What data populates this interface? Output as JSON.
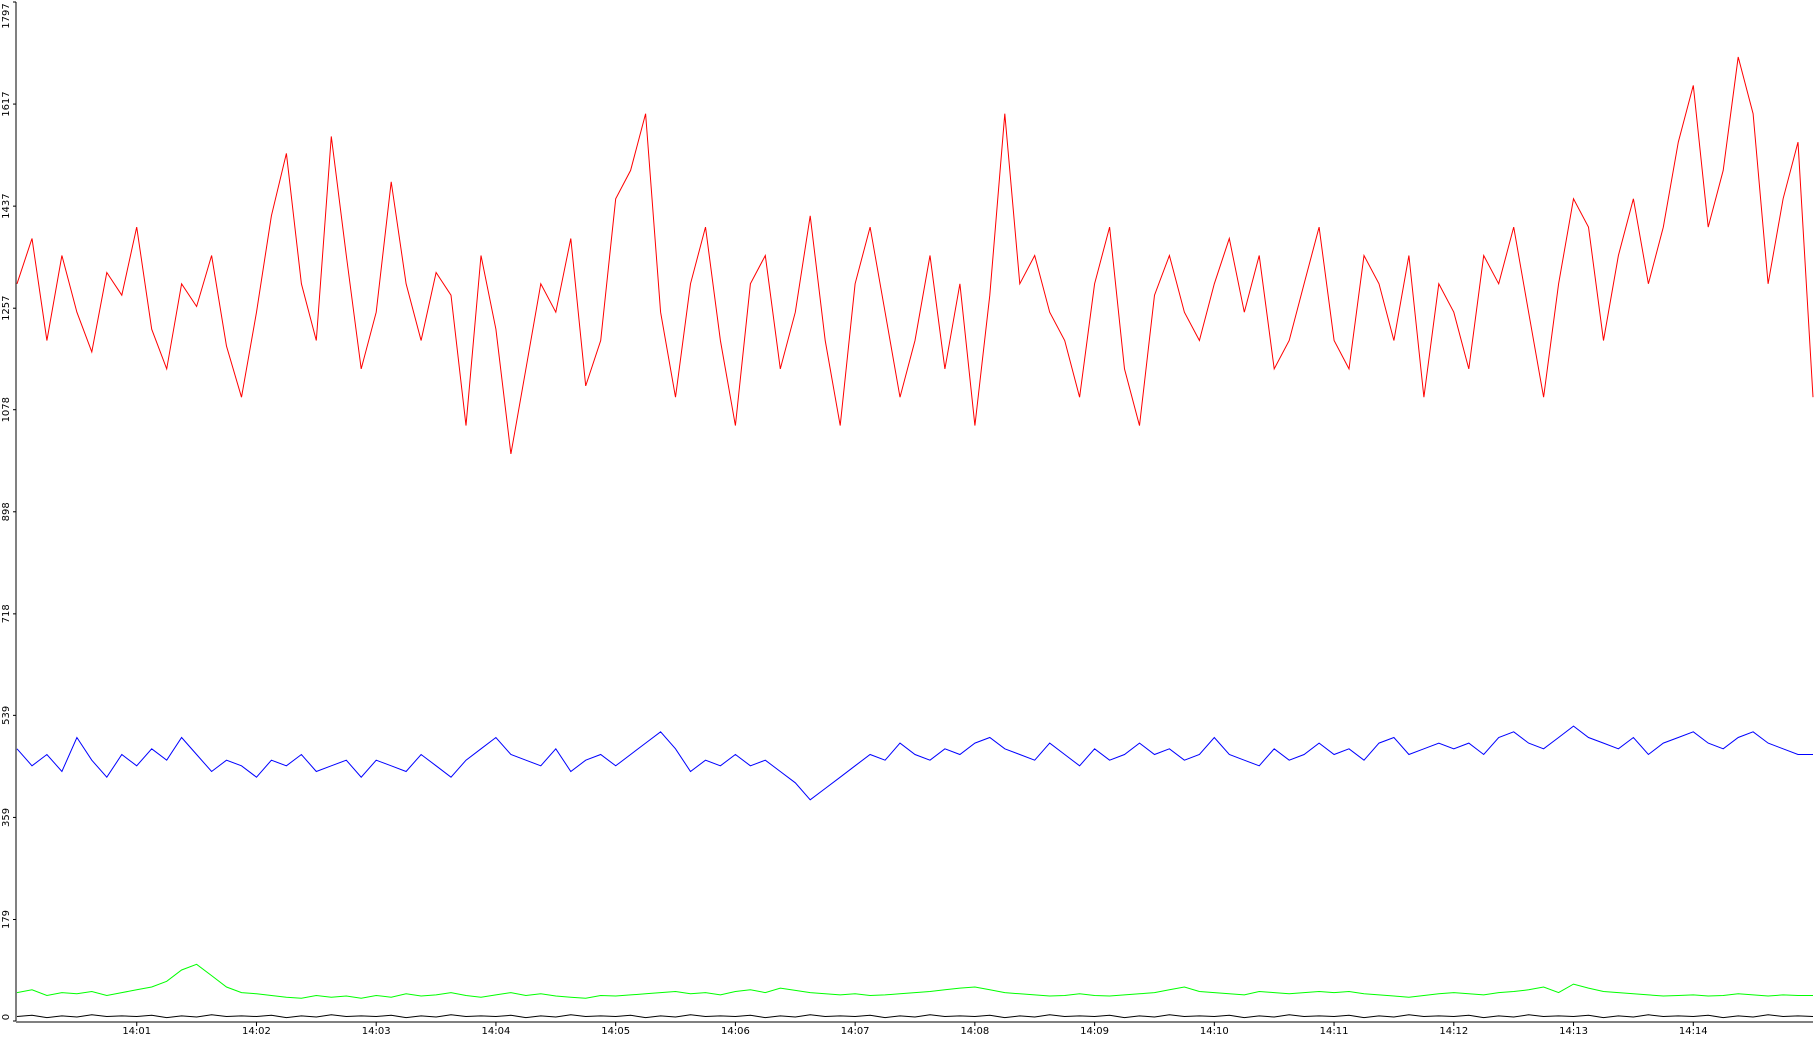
{
  "chart_data": {
    "type": "line",
    "categories": [
      null,
      null,
      null,
      null,
      null,
      null,
      null,
      null,
      "14:01",
      null,
      null,
      null,
      null,
      null,
      null,
      null,
      "14:02",
      null,
      null,
      null,
      null,
      null,
      null,
      null,
      "14:03",
      null,
      null,
      null,
      null,
      null,
      null,
      null,
      "14:04",
      null,
      null,
      null,
      null,
      null,
      null,
      null,
      "14:05",
      null,
      null,
      null,
      null,
      null,
      null,
      null,
      "14:06",
      null,
      null,
      null,
      null,
      null,
      null,
      null,
      "14:07",
      null,
      null,
      null,
      null,
      null,
      null,
      null,
      "14:08",
      null,
      null,
      null,
      null,
      null,
      null,
      null,
      "14:09",
      null,
      null,
      null,
      null,
      null,
      null,
      null,
      "14:10",
      null,
      null,
      null,
      null,
      null,
      null,
      null,
      "14:11",
      null,
      null,
      null,
      null,
      null,
      null,
      null,
      "14:12",
      null,
      null,
      null,
      null,
      null,
      null,
      null,
      "14:13",
      null,
      null,
      null,
      null,
      null,
      null,
      null,
      "14:14",
      null,
      null,
      null,
      null,
      null,
      null,
      null,
      null
    ],
    "series": [
      {
        "color": "#000000",
        "values": [
          8,
          10,
          6,
          9,
          7,
          11,
          8,
          9,
          8,
          10,
          6,
          9,
          7,
          11,
          8,
          9,
          8,
          10,
          6,
          9,
          7,
          11,
          8,
          9,
          8,
          10,
          6,
          9,
          7,
          11,
          8,
          9,
          8,
          10,
          6,
          9,
          7,
          11,
          8,
          9,
          8,
          10,
          6,
          9,
          7,
          11,
          8,
          9,
          8,
          10,
          6,
          9,
          7,
          11,
          8,
          9,
          8,
          10,
          6,
          9,
          7,
          11,
          8,
          9,
          8,
          10,
          6,
          9,
          7,
          11,
          8,
          9,
          8,
          10,
          6,
          9,
          7,
          11,
          8,
          9,
          8,
          10,
          6,
          9,
          7,
          11,
          8,
          9,
          8,
          10,
          6,
          9,
          7,
          11,
          8,
          9,
          8,
          10,
          6,
          9,
          7,
          11,
          8,
          9,
          8,
          10,
          6,
          9,
          7,
          11,
          8,
          9,
          8,
          10,
          6,
          9,
          7,
          11,
          8,
          9,
          8
        ]
      },
      {
        "color": "#00ff00",
        "values": [
          50,
          55,
          45,
          50,
          48,
          52,
          45,
          50,
          55,
          60,
          70,
          90,
          100,
          80,
          60,
          50,
          48,
          45,
          42,
          40,
          45,
          42,
          44,
          40,
          45,
          42,
          48,
          44,
          46,
          50,
          45,
          42,
          46,
          50,
          45,
          48,
          44,
          42,
          40,
          45,
          44,
          46,
          48,
          50,
          52,
          48,
          50,
          46,
          52,
          55,
          50,
          58,
          54,
          50,
          48,
          46,
          48,
          45,
          46,
          48,
          50,
          52,
          55,
          58,
          60,
          55,
          50,
          48,
          46,
          44,
          45,
          48,
          45,
          44,
          46,
          48,
          50,
          55,
          60,
          52,
          50,
          48,
          46,
          52,
          50,
          48,
          50,
          52,
          50,
          52,
          48,
          46,
          44,
          42,
          45,
          48,
          50,
          48,
          46,
          50,
          52,
          55,
          60,
          50,
          65,
          58,
          52,
          50,
          48,
          46,
          44,
          45,
          46,
          44,
          45,
          48,
          46,
          44,
          46,
          45,
          45
        ]
      },
      {
        "color": "#0000ff",
        "values": [
          480,
          450,
          470,
          440,
          500,
          460,
          430,
          470,
          450,
          480,
          460,
          500,
          470,
          440,
          460,
          450,
          430,
          460,
          450,
          470,
          440,
          450,
          460,
          430,
          460,
          450,
          440,
          470,
          450,
          430,
          460,
          480,
          500,
          470,
          460,
          450,
          480,
          440,
          460,
          470,
          450,
          470,
          490,
          510,
          480,
          440,
          460,
          450,
          470,
          450,
          460,
          440,
          420,
          390,
          410,
          430,
          450,
          470,
          460,
          490,
          470,
          460,
          480,
          470,
          490,
          500,
          480,
          470,
          460,
          490,
          470,
          450,
          480,
          460,
          470,
          490,
          470,
          480,
          460,
          470,
          500,
          470,
          460,
          450,
          480,
          460,
          470,
          490,
          470,
          480,
          460,
          490,
          500,
          470,
          480,
          490,
          480,
          490,
          470,
          500,
          510,
          490,
          480,
          500,
          520,
          500,
          490,
          480,
          500,
          470,
          490,
          500,
          510,
          490,
          480,
          500,
          510,
          490,
          480,
          470,
          470
        ]
      },
      {
        "color": "#ff0000",
        "values": [
          1300,
          1380,
          1200,
          1350,
          1250,
          1180,
          1320,
          1280,
          1400,
          1220,
          1150,
          1300,
          1260,
          1350,
          1190,
          1100,
          1250,
          1420,
          1530,
          1300,
          1200,
          1560,
          1350,
          1150,
          1250,
          1480,
          1300,
          1200,
          1320,
          1280,
          1050,
          1350,
          1220,
          1000,
          1150,
          1300,
          1250,
          1380,
          1120,
          1200,
          1450,
          1500,
          1600,
          1250,
          1100,
          1300,
          1400,
          1200,
          1050,
          1300,
          1350,
          1150,
          1250,
          1420,
          1200,
          1050,
          1300,
          1400,
          1250,
          1100,
          1200,
          1350,
          1150,
          1300,
          1050,
          1280,
          1600,
          1300,
          1350,
          1250,
          1200,
          1100,
          1300,
          1400,
          1150,
          1050,
          1280,
          1350,
          1250,
          1200,
          1300,
          1380,
          1250,
          1350,
          1150,
          1200,
          1300,
          1400,
          1200,
          1150,
          1350,
          1300,
          1200,
          1350,
          1100,
          1300,
          1250,
          1150,
          1350,
          1300,
          1400,
          1250,
          1100,
          1300,
          1450,
          1400,
          1200,
          1350,
          1450,
          1300,
          1400,
          1550,
          1650,
          1400,
          1500,
          1700,
          1600,
          1300,
          1450,
          1550,
          1100
        ]
      }
    ],
    "ylim": [
      0,
      1797
    ],
    "yticks": [
      0,
      179,
      359,
      539,
      718,
      898,
      1078,
      1257,
      1437,
      1617,
      1797
    ],
    "grid": false
  }
}
